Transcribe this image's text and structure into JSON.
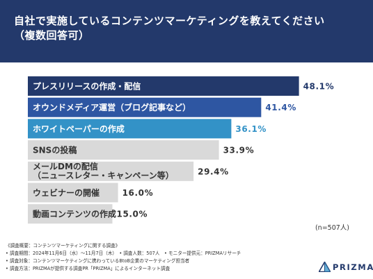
{
  "header": {
    "title": "自社で実施しているコンテンツマーケティングを教えてください\n（複数回答可）"
  },
  "chart_data": {
    "type": "bar",
    "orientation": "horizontal",
    "title": "自社で実施しているコンテンツマーケティングを教えてください（複数回答可）",
    "categories": [
      "プレスリリースの作成・配信",
      "オウンドメディア運営（ブログ記事など）",
      "ホワイトペーパーの作成",
      "SNSの投稿",
      "メールDMの配信\n（ニュースレター・キャンペーン等）",
      "ウェビナーの開催",
      "動画コンテンツの作成"
    ],
    "values": [
      48.1,
      41.4,
      36.1,
      33.9,
      29.4,
      16.0,
      15.0
    ],
    "value_labels": [
      "48.1%",
      "41.4%",
      "36.1%",
      "33.9%",
      "29.4%",
      "16.0%",
      "15.0%"
    ],
    "unit": "%",
    "xlim": [
      0,
      50
    ],
    "grid": false,
    "colors": [
      "#23396b",
      "#2e56a2",
      "#3392c7",
      "#d9d9d9",
      "#d9d9d9",
      "#d9d9d9",
      "#d9d9d9"
    ],
    "label_colors": [
      "#ffffff",
      "#ffffff",
      "#ffffff",
      "#333333",
      "#333333",
      "#333333",
      "#333333"
    ],
    "value_colors": [
      "#23396b",
      "#2e56a2",
      "#3392c7",
      "#333333",
      "#333333",
      "#333333",
      "#333333"
    ]
  },
  "note": "(n=507人)",
  "survey": {
    "lines": [
      "《調査概要：コンテンツマーケティングに関する調査》",
      "• 調査期間：2024年11月6日（水）〜11月7日（木）　• 調査人数：507人　• モニター提供元：PRIZMAリサーチ",
      "• 調査対象：コンテンツマーケティングに携わっているBtoB企業のマーケティング担当者",
      "• 調査方法：PRIZMAが提供する調査PR「PRIZMA」によるインターネット調査"
    ]
  },
  "logo": {
    "text": "PRIZMA",
    "color": "#23396b"
  }
}
